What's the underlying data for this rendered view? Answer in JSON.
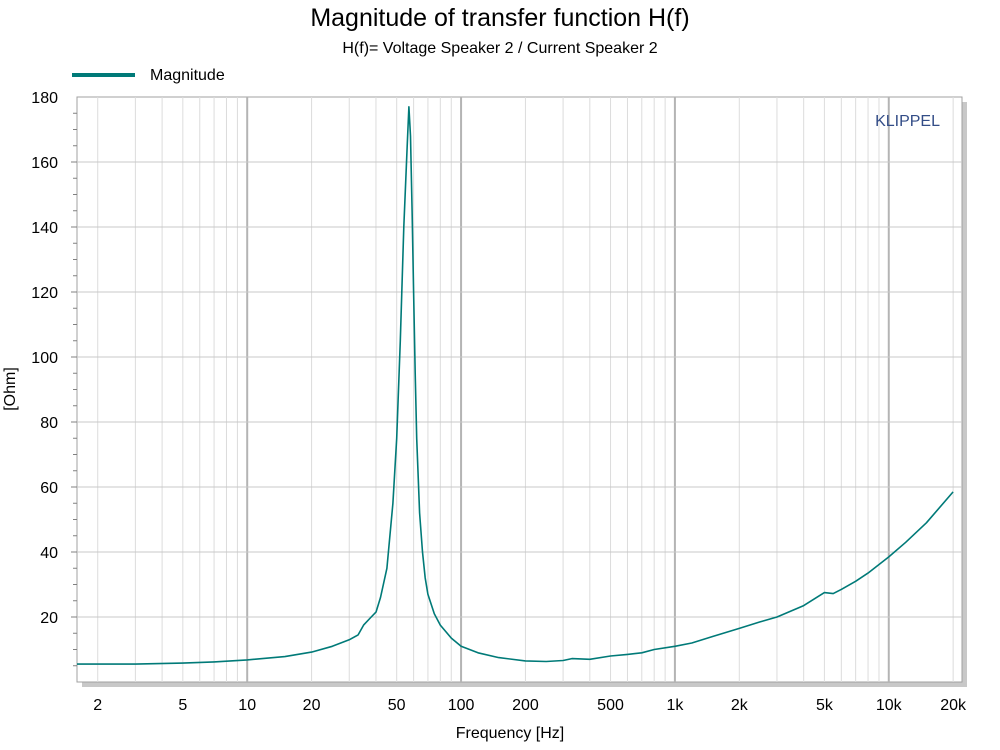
{
  "chart_data": {
    "type": "line",
    "title": "Magnitude of transfer function H(f)",
    "subtitle": "H(f)= Voltage Speaker 2 / Current Speaker 2",
    "xlabel": "Frequency [Hz]",
    "ylabel": "[Ohm]",
    "xscale": "log",
    "xlim": [
      1.6,
      22000
    ],
    "ylim": [
      0,
      180
    ],
    "grid": true,
    "legend_position": "top-left",
    "watermark": "KLIPPEL",
    "x_tick_labels": [
      {
        "value": 2,
        "label": "2"
      },
      {
        "value": 5,
        "label": "5"
      },
      {
        "value": 10,
        "label": "10"
      },
      {
        "value": 20,
        "label": "20"
      },
      {
        "value": 50,
        "label": "50"
      },
      {
        "value": 100,
        "label": "100"
      },
      {
        "value": 200,
        "label": "200"
      },
      {
        "value": 500,
        "label": "500"
      },
      {
        "value": 1000,
        "label": "1k"
      },
      {
        "value": 2000,
        "label": "2k"
      },
      {
        "value": 5000,
        "label": "5k"
      },
      {
        "value": 10000,
        "label": "10k"
      },
      {
        "value": 20000,
        "label": "20k"
      }
    ],
    "y_tick_labels": [
      {
        "value": 20,
        "label": "20"
      },
      {
        "value": 40,
        "label": "40"
      },
      {
        "value": 60,
        "label": "60"
      },
      {
        "value": 80,
        "label": "80"
      },
      {
        "value": 100,
        "label": "100"
      },
      {
        "value": 120,
        "label": "120"
      },
      {
        "value": 140,
        "label": "140"
      },
      {
        "value": 160,
        "label": "160"
      },
      {
        "value": 180,
        "label": "180"
      }
    ],
    "series": [
      {
        "name": "Magnitude",
        "color": "#007a78",
        "x": [
          1.6,
          2,
          3,
          5,
          7,
          10,
          15,
          20,
          25,
          30,
          33,
          35,
          38,
          40,
          42,
          45,
          48,
          50,
          52,
          54,
          56,
          57,
          58,
          59,
          60,
          61,
          62,
          64,
          66,
          68,
          70,
          75,
          80,
          90,
          100,
          120,
          150,
          200,
          250,
          300,
          330,
          400,
          500,
          600,
          700,
          800,
          1000,
          1200,
          1500,
          2000,
          2500,
          3000,
          4000,
          5000,
          5500,
          6000,
          7000,
          8000,
          10000,
          12000,
          15000,
          20000
        ],
        "y": [
          5.5,
          5.5,
          5.5,
          5.8,
          6.2,
          6.8,
          7.8,
          9.2,
          11.0,
          13.0,
          14.5,
          17.5,
          20.0,
          21.5,
          26.0,
          35.0,
          55.0,
          75.0,
          105.0,
          140.0,
          165.0,
          177.0,
          168.0,
          145.0,
          120.0,
          95.0,
          75.0,
          52.0,
          40.0,
          32.0,
          27.0,
          21.0,
          17.5,
          13.5,
          11.0,
          9.0,
          7.5,
          6.5,
          6.3,
          6.6,
          7.2,
          7.0,
          8.0,
          8.5,
          9.0,
          10.0,
          11.0,
          12.0,
          14.0,
          16.5,
          18.5,
          20.0,
          23.5,
          27.5,
          27.2,
          28.5,
          31.0,
          33.5,
          38.5,
          43.0,
          49.0,
          58.5
        ]
      }
    ]
  }
}
